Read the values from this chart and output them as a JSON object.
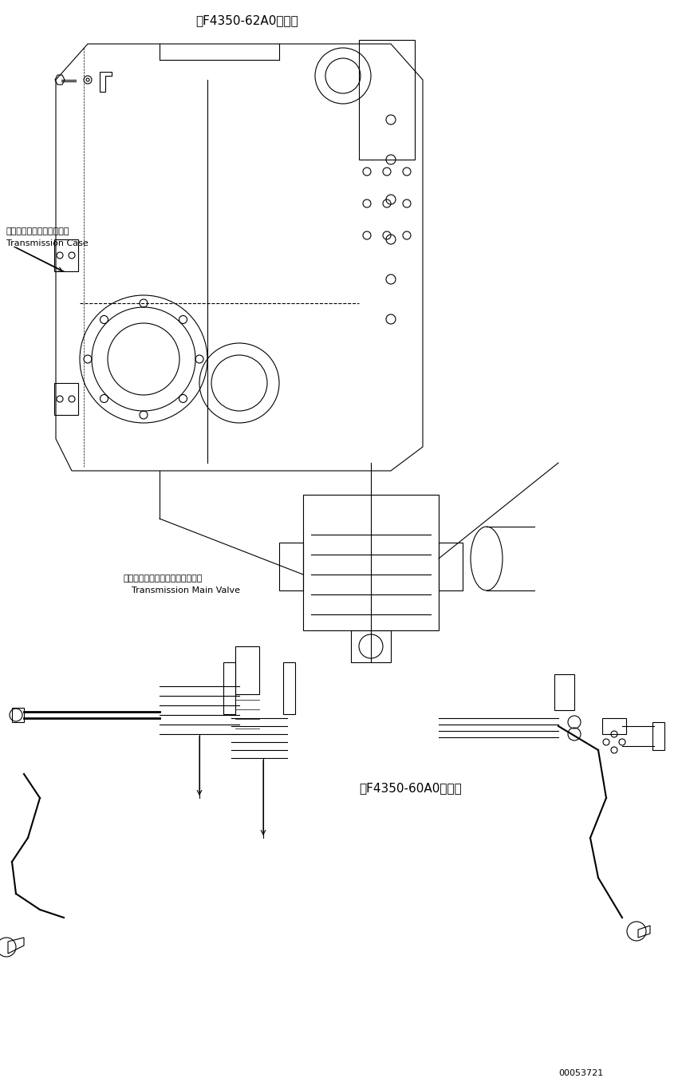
{
  "bg_color": "#ffffff",
  "line_color": "#000000",
  "title_top": "第F4350-62A0図参照",
  "title_bottom_right": "第F4350-60A0図参照",
  "label_case_jp": "トランスミッションケース",
  "label_case_en": "Transmission Case",
  "label_valve_jp": "トランスミッションメインバルブ",
  "label_valve_en": "Transmission Main Valve",
  "part_number": "00053721",
  "figsize": [
    8.5,
    13.56
  ],
  "dpi": 100
}
